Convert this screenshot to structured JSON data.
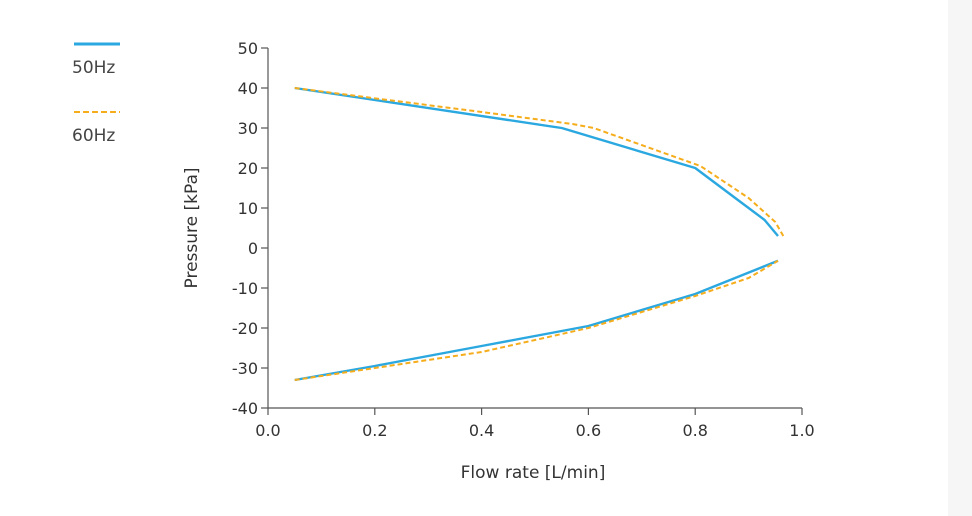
{
  "chart_data": {
    "type": "line",
    "title": "",
    "xlabel": "Flow rate [L/min]",
    "ylabel": "Pressure [kPa]",
    "xlim": [
      0.0,
      1.0
    ],
    "ylim": [
      -40,
      50
    ],
    "x_ticks": [
      "0.0",
      "0.2",
      "0.4",
      "0.6",
      "0.8",
      "1.0"
    ],
    "y_ticks": [
      "50",
      "40",
      "30",
      "20",
      "10",
      "0",
      "-10",
      "-20",
      "-30",
      "-40"
    ],
    "legend_position": "top-left",
    "series": [
      {
        "name": "50Hz",
        "color": "#2ba8e0",
        "style": "solid",
        "upper": {
          "x": [
            0.05,
            0.55,
            0.8,
            0.88,
            0.93,
            0.955
          ],
          "y": [
            40,
            30,
            20,
            12,
            7,
            3
          ]
        },
        "lower": {
          "x": [
            0.05,
            0.2,
            0.4,
            0.6,
            0.8,
            0.955
          ],
          "y": [
            -33,
            -29.5,
            -24.5,
            -19.5,
            -11.5,
            -3.2
          ]
        }
      },
      {
        "name": "60Hz",
        "color": "#f5ad1b",
        "style": "dashed",
        "upper": {
          "x": [
            0.05,
            0.4,
            0.57,
            0.61,
            0.81,
            0.9,
            0.95,
            0.965
          ],
          "y": [
            40,
            34,
            31,
            30,
            20.5,
            12.5,
            6.5,
            3
          ]
        },
        "lower": {
          "x": [
            0.05,
            0.2,
            0.4,
            0.6,
            0.8,
            0.9,
            0.955
          ],
          "y": [
            -33,
            -30,
            -26,
            -20,
            -12,
            -7.5,
            -3.2
          ]
        }
      }
    ]
  }
}
